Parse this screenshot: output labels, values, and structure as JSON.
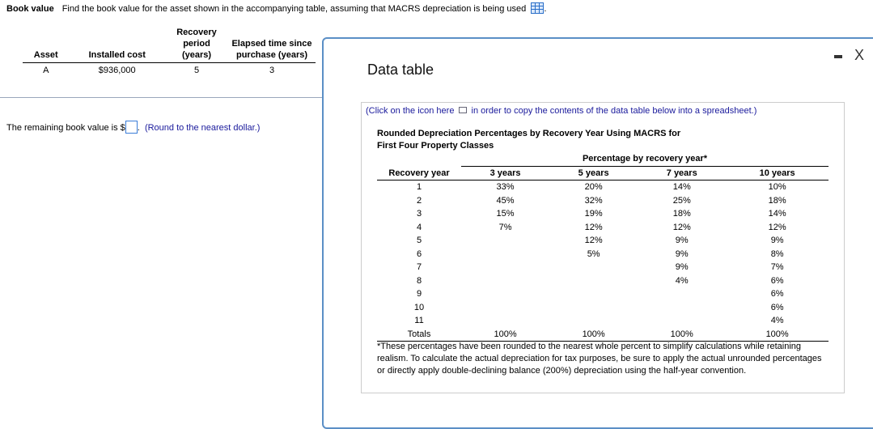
{
  "question": {
    "label": "Book value",
    "text": "Find the book value for the asset shown in the accompanying table, assuming that MACRS depreciation is being used",
    "icon": "grid-table-icon"
  },
  "asset_table": {
    "headers": [
      "Asset",
      "Installed cost",
      "Recovery period (years)",
      "Elapsed time since purchase (years)"
    ],
    "rows": [
      [
        "A",
        "$936,000",
        "5",
        "3"
      ]
    ]
  },
  "answer": {
    "prefix": "The remaining book value is $",
    "value": "",
    "suffix": ".",
    "hint": "(Round to the nearest dollar.)"
  },
  "modal": {
    "title": "Data table",
    "minimize": "minimize-icon",
    "close": "X",
    "copy_before": "(Click on the icon here",
    "copy_after": "in order to copy the contents of the data table below into a spreadsheet.)",
    "table_title_1": "Rounded Depreciation Percentages by Recovery Year Using MACRS for",
    "table_title_2": "First Four Property Classes",
    "group_header": "Percentage by recovery year*",
    "columns": [
      "Recovery year",
      "3 years",
      "5 years",
      "7 years",
      "10 years"
    ],
    "rows": [
      [
        "1",
        "33%",
        "20%",
        "14%",
        "10%"
      ],
      [
        "2",
        "45%",
        "32%",
        "25%",
        "18%"
      ],
      [
        "3",
        "15%",
        "19%",
        "18%",
        "14%"
      ],
      [
        "4",
        "7%",
        "12%",
        "12%",
        "12%"
      ],
      [
        "5",
        "",
        "12%",
        "9%",
        "9%"
      ],
      [
        "6",
        "",
        "5%",
        "9%",
        "8%"
      ],
      [
        "7",
        "",
        "",
        "9%",
        "7%"
      ],
      [
        "8",
        "",
        "",
        "4%",
        "6%"
      ],
      [
        "9",
        "",
        "",
        "",
        "6%"
      ],
      [
        "10",
        "",
        "",
        "",
        "6%"
      ],
      [
        "11",
        "",
        "",
        "",
        "4%"
      ]
    ],
    "totals": [
      "Totals",
      "100%",
      "100%",
      "100%",
      "100%"
    ],
    "note": "*These percentages have been rounded to the nearest whole percent to simplify calculations while retaining realism. To calculate the actual depreciation for tax purposes, be sure to apply the actual unrounded percentages or directly apply double-declining balance (200%) depreciation using the half-year convention."
  }
}
